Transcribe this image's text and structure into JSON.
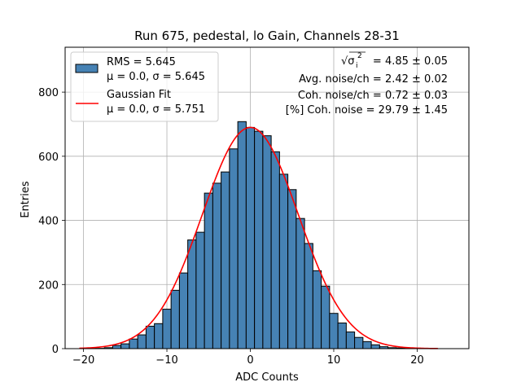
{
  "chart_data": {
    "type": "bar",
    "title": "Run 675, pedestal, lo Gain, Channels 28-31",
    "xlabel": "ADC Counts",
    "ylabel": "Entries",
    "xlim": [
      -22.2,
      26.2
    ],
    "ylim": [
      0,
      940
    ],
    "xticks": [
      -20,
      -10,
      0,
      10,
      20
    ],
    "yticks": [
      0,
      200,
      400,
      600,
      800
    ],
    "grid": true,
    "histogram": {
      "bin_edges": [
        -19.5,
        -18.5,
        -17.5,
        -16.5,
        -15.5,
        -14.5,
        -13.5,
        -12.5,
        -11.5,
        -10.5,
        -9.5,
        -8.5,
        -7.5,
        -6.5,
        -5.5,
        -4.5,
        -3.5,
        -2.5,
        -1.5,
        -0.5,
        0.5,
        1.5,
        2.5,
        3.5,
        4.5,
        5.5,
        6.5,
        7.5,
        8.5,
        9.5,
        10.5,
        11.5,
        12.5,
        13.5,
        14.5,
        15.5,
        16.5,
        17.5,
        18.5,
        19.5,
        20.5,
        21.5,
        22.5
      ],
      "counts": [
        1,
        1,
        3,
        10,
        15,
        30,
        43,
        70,
        78,
        123,
        182,
        236,
        339,
        363,
        485,
        516,
        551,
        623,
        708,
        690,
        678,
        664,
        614,
        544,
        496,
        406,
        328,
        243,
        195,
        110,
        80,
        52,
        35,
        22,
        12,
        6,
        3,
        2,
        1,
        1,
        0,
        0
      ],
      "color": "#4682b4",
      "edgecolor": "#000000"
    },
    "series": [
      {
        "name": "Gaussian Fit",
        "kind": "gaussian",
        "mu": 0.0,
        "sigma": 5.751,
        "amplitude": 690,
        "x_range": [
          -20.5,
          22.5
        ],
        "color": "#ff0000"
      }
    ],
    "legend": {
      "position": "top-left",
      "entries": [
        {
          "label": "RMS = 5.645",
          "sublabel": "μ = 0.0, σ = 5.645",
          "marker": "patch",
          "color": "#4682b4"
        },
        {
          "label": "Gaussian Fit",
          "sublabel": "μ = 0.0, σ = 5.751",
          "marker": "line",
          "color": "#ff0000"
        }
      ]
    },
    "annotations": [
      {
        "prefix": "√σ",
        "sup": "2",
        "sub": "i",
        "value": "= 4.85 ± 0.05"
      },
      {
        "text": "Avg. noise/ch = 2.42 ± 0.02"
      },
      {
        "text": "Coh. noise/ch = 0.72 ± 0.03"
      },
      {
        "text": "[%] Coh. noise = 29.79 ± 1.45"
      }
    ]
  }
}
